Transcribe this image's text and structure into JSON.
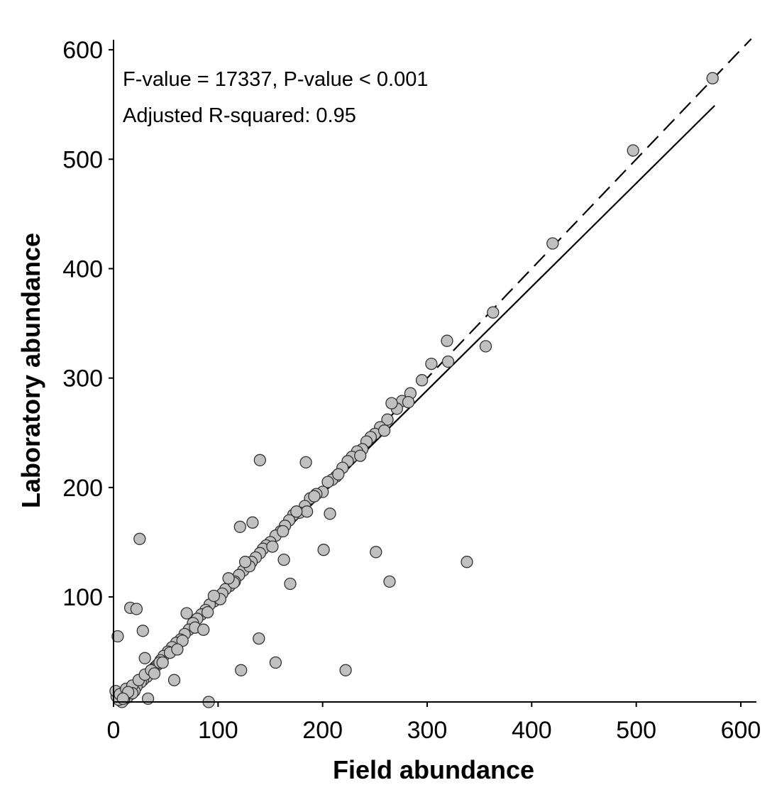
{
  "chart_data": {
    "type": "scatter",
    "xlabel": "Field abundance",
    "ylabel": "Laboratory abundance",
    "xlim": [
      0,
      610
    ],
    "ylim": [
      4,
      600
    ],
    "x_ticks": [
      0,
      100,
      200,
      300,
      400,
      500,
      600
    ],
    "y_ticks": [
      100,
      200,
      300,
      400,
      500,
      600
    ],
    "grid": false,
    "annotations": [
      "F-value = 17337, P-value < 0.001",
      "Adjusted R-squared: 0.95"
    ],
    "point_color": "#c0c0c0",
    "point_edge_color": "#333333",
    "lines": [
      {
        "style": "dashed",
        "x": [
          0,
          610
        ],
        "y": [
          0,
          610
        ]
      },
      {
        "style": "solid",
        "x": [
          0,
          575
        ],
        "y": [
          5,
          549
        ]
      }
    ],
    "series": [
      {
        "x": [
          573,
          497,
          420,
          363,
          356,
          319,
          320,
          304,
          295,
          284,
          276,
          271,
          266,
          262,
          255,
          250,
          246,
          242,
          238,
          233,
          228,
          224,
          219,
          213,
          209,
          205,
          200,
          194,
          188,
          183,
          178,
          172,
          168,
          164,
          160,
          155,
          150,
          146,
          143,
          140,
          136,
          132,
          128,
          124,
          120,
          116,
          111,
          107,
          104,
          100,
          96,
          92,
          88,
          84,
          80,
          76,
          72,
          68,
          64,
          60,
          56,
          52,
          48,
          45,
          42,
          38,
          35,
          32,
          28,
          26,
          22,
          20,
          16,
          13,
          10,
          8,
          5,
          3,
          2,
          6,
          12,
          18,
          24,
          30,
          36,
          44,
          54,
          66,
          78,
          90,
          102,
          115,
          130,
          162,
          185,
          140,
          184,
          121,
          133,
          25,
          16,
          22,
          28,
          207,
          201,
          251,
          264,
          338,
          169,
          163,
          139,
          122,
          155,
          222,
          91,
          4,
          18,
          33,
          58,
          70,
          96,
          110,
          126,
          152,
          175,
          192,
          215,
          236,
          259,
          282,
          61,
          86,
          47,
          39,
          14,
          9,
          30
        ],
        "y": [
          574,
          508,
          423,
          360,
          329,
          334,
          315,
          313,
          298,
          286,
          279,
          272,
          277,
          262,
          255,
          249,
          246,
          242,
          235,
          233,
          228,
          224,
          218,
          210,
          207,
          205,
          196,
          194,
          190,
          183,
          177,
          175,
          170,
          165,
          160,
          156,
          150,
          147,
          144,
          140,
          136,
          132,
          128,
          124,
          120,
          114,
          110,
          107,
          103,
          98,
          96,
          93,
          88,
          84,
          80,
          76,
          70,
          66,
          61,
          58,
          54,
          50,
          46,
          42,
          38,
          34,
          31,
          27,
          24,
          22,
          18,
          14,
          11,
          8,
          6,
          4,
          6,
          9,
          14,
          11,
          16,
          19,
          24,
          29,
          33,
          40,
          49,
          60,
          72,
          86,
          98,
          113,
          128,
          160,
          178,
          225,
          223,
          164,
          168,
          153,
          90,
          89,
          69,
          176,
          143,
          141,
          114,
          132,
          112,
          134,
          62,
          33,
          40,
          33,
          4,
          64,
          12,
          7,
          24,
          85,
          101,
          117,
          132,
          146,
          178,
          192,
          212,
          229,
          252,
          278,
          52,
          70,
          40,
          30,
          13,
          7,
          44
        ]
      }
    ]
  }
}
